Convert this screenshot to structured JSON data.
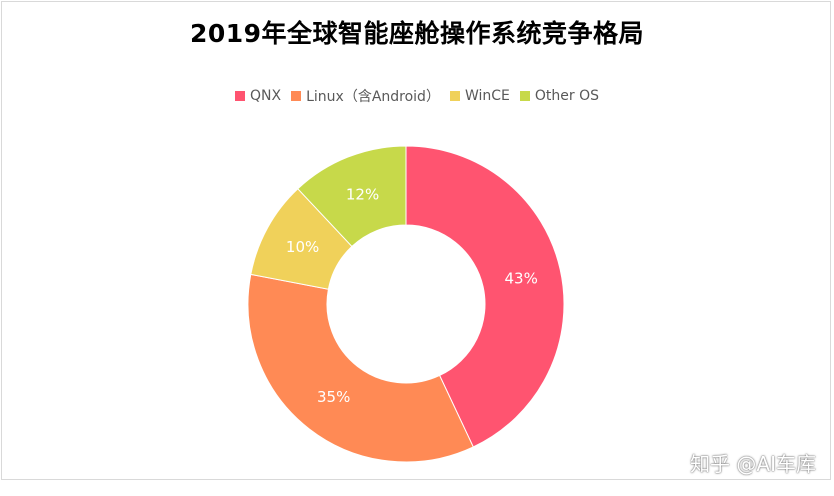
{
  "chart_data": {
    "type": "pie",
    "title": "2019年全球智能座舱操作系统竞争格局",
    "categories": [
      "QNX",
      "Linux（含Android）",
      "WinCE",
      "Other OS"
    ],
    "values": [
      43,
      35,
      10,
      12
    ],
    "labels": [
      "43%",
      "35%",
      "10%",
      "12%"
    ],
    "colors": [
      "#ff5470",
      "#ff8a55",
      "#f0d15a",
      "#c7d94a"
    ],
    "donut": true,
    "legend_position": "top"
  },
  "watermark": "知乎 @AI车库"
}
